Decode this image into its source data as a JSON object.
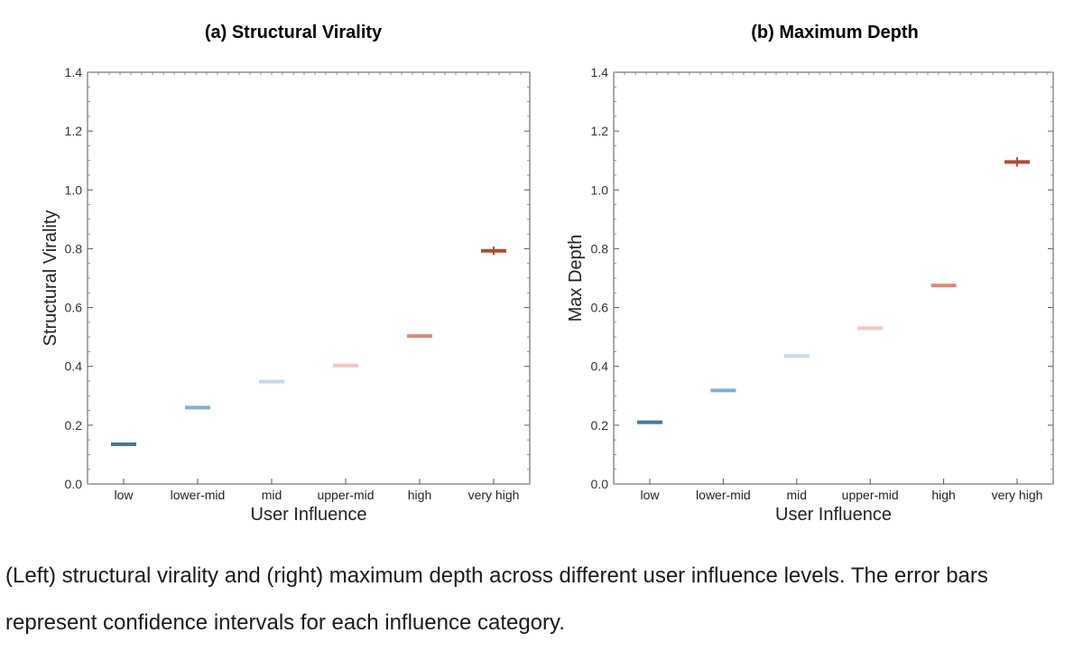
{
  "chart_data": [
    {
      "type": "scatter",
      "title": "(a) Structural Virality",
      "xlabel": "User Influence",
      "ylabel": "Structural Virality",
      "categories": [
        "low",
        "lower-mid",
        "mid",
        "upper-mid",
        "high",
        "very high"
      ],
      "values": [
        0.135,
        0.26,
        0.348,
        0.403,
        0.503,
        0.793
      ],
      "errors": [
        0.004,
        0.004,
        0.005,
        0.005,
        0.006,
        0.014
      ],
      "colors": [
        "#3d7d9c",
        "#7fb0c8",
        "#c6d9e4",
        "#f0c8c4",
        "#d9897a",
        "#b8482e"
      ],
      "ylim": [
        0,
        1.4
      ],
      "yticks": [
        0.0,
        0.2,
        0.4,
        0.6,
        0.8,
        1.0,
        1.2,
        1.4
      ],
      "ytick_labels": [
        "0.0",
        "0.2",
        "0.4",
        "0.6",
        "0.8",
        "1.0",
        "1.2",
        "1.4"
      ]
    },
    {
      "type": "scatter",
      "title": "(b) Maximum Depth",
      "xlabel": "User Influence",
      "ylabel": "Max Depth",
      "categories": [
        "low",
        "lower-mid",
        "mid",
        "upper-mid",
        "high",
        "very high"
      ],
      "values": [
        0.21,
        0.318,
        0.435,
        0.53,
        0.675,
        1.095
      ],
      "errors": [
        0.004,
        0.004,
        0.005,
        0.005,
        0.006,
        0.016
      ],
      "colors": [
        "#3d7d9c",
        "#7fb0c8",
        "#c6d9e4",
        "#f0c8c4",
        "#d9897a",
        "#b8482e"
      ],
      "ylim": [
        0,
        1.4
      ],
      "yticks": [
        0.0,
        0.2,
        0.4,
        0.6,
        0.8,
        1.0,
        1.2,
        1.4
      ],
      "ytick_labels": [
        "0.0",
        "0.2",
        "0.4",
        "0.6",
        "0.8",
        "1.0",
        "1.2",
        "1.4"
      ]
    }
  ],
  "caption": "(Left) structural virality and (right) maximum depth across different user influence levels. The error bars represent confidence intervals for each influence category."
}
